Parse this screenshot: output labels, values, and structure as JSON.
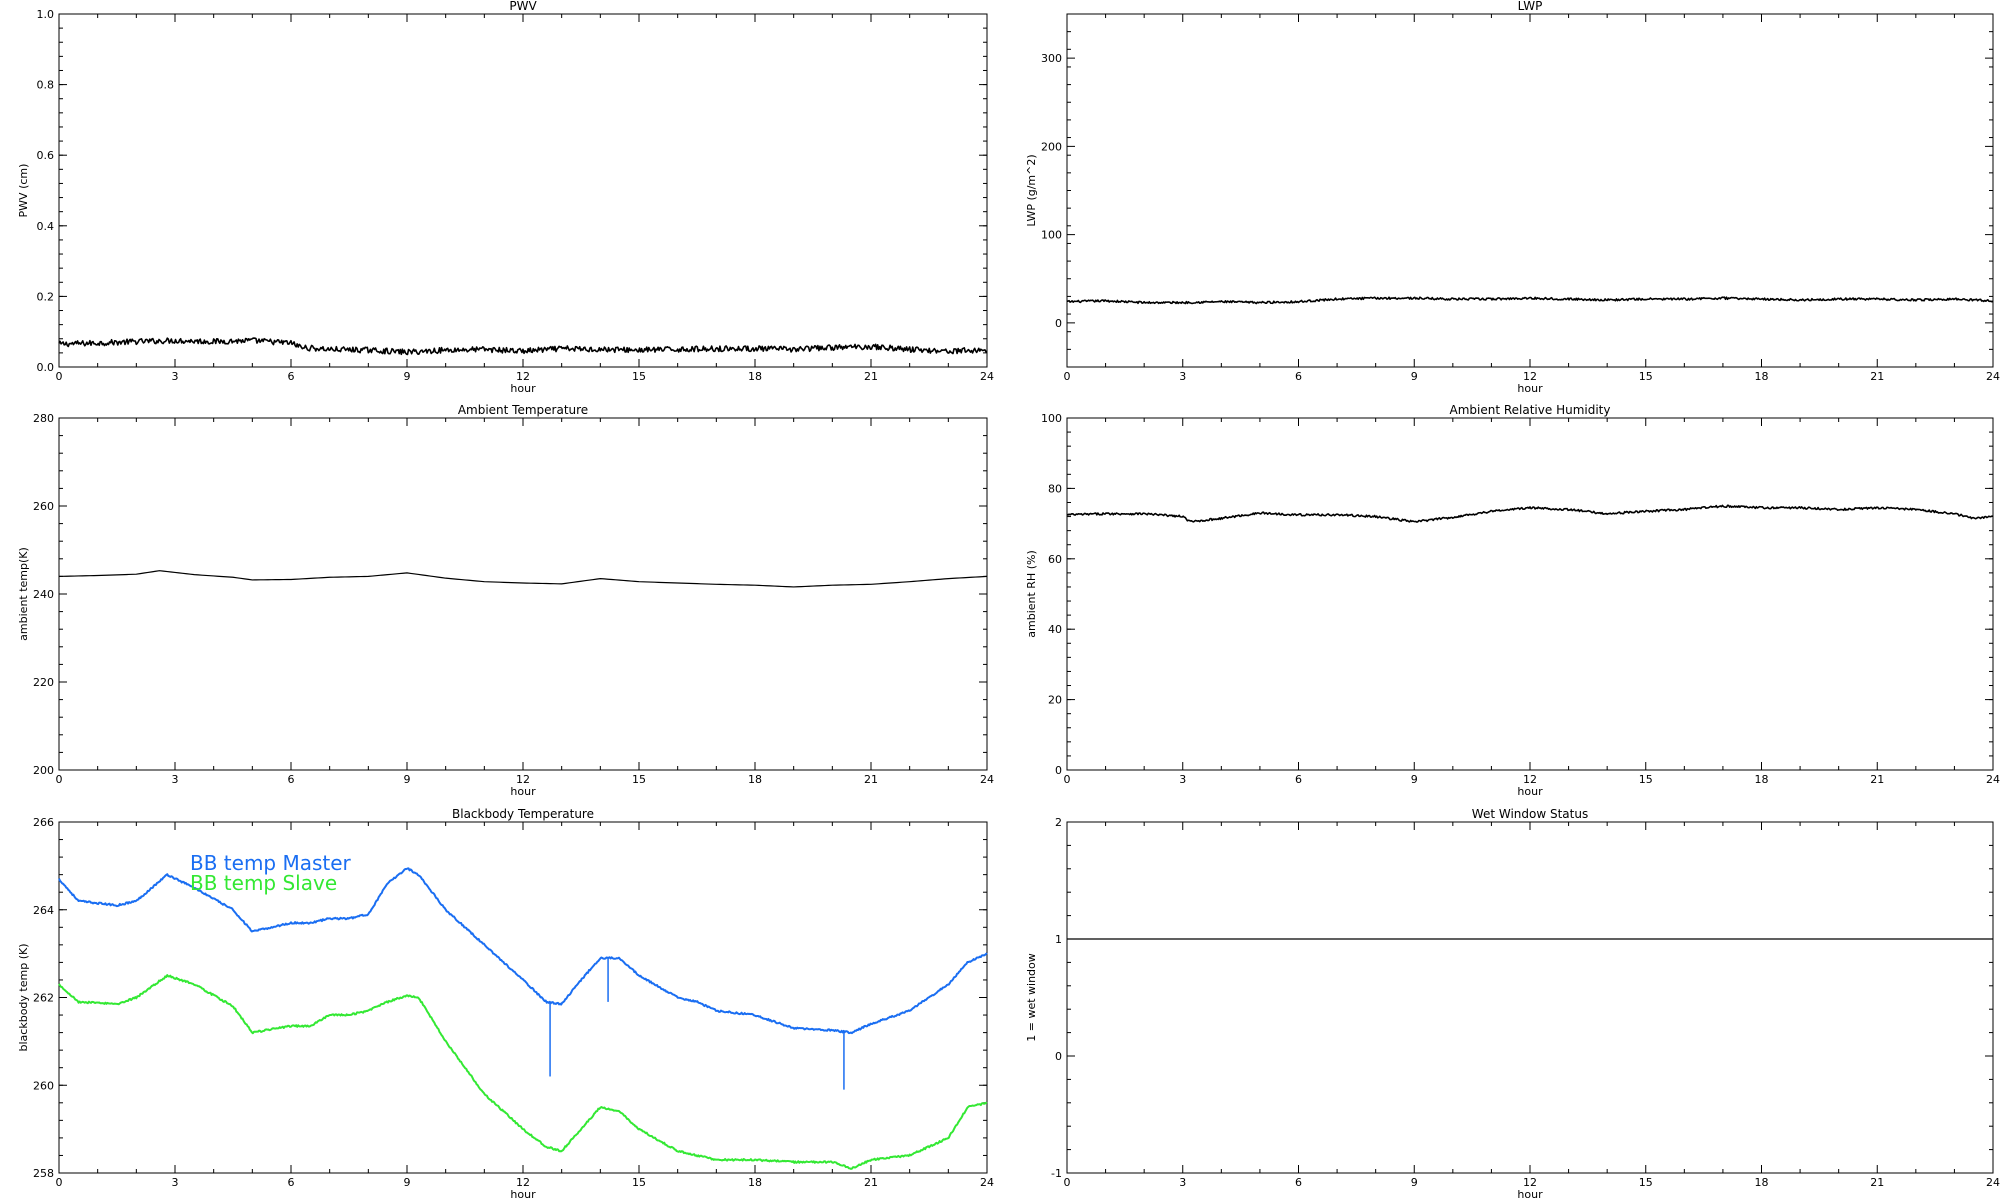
{
  "chart_data": [
    {
      "id": "pwv",
      "type": "line",
      "title": "PWV",
      "xlabel": "hour",
      "ylabel": "PWV (cm)",
      "xlim": [
        0,
        24
      ],
      "ylim": [
        0,
        1
      ],
      "xticks": [
        0,
        3,
        6,
        9,
        12,
        15,
        18,
        21,
        24
      ],
      "xtick_labels": [
        "0",
        "3",
        "6",
        "9",
        "12",
        "15",
        "18",
        "21",
        "24"
      ],
      "yticks": [
        0,
        0.2,
        0.4,
        0.6,
        0.8,
        1.0
      ],
      "ytick_labels": [
        "0.0",
        "0.2",
        "0.4",
        "0.6",
        "0.8",
        "1.0"
      ],
      "series": [
        {
          "color": "#000000",
          "noise": 0.008,
          "x": [
            0,
            1,
            2,
            3,
            4,
            5,
            6,
            6.3,
            7,
            8,
            9,
            10,
            11,
            12,
            13,
            14,
            15,
            16,
            17,
            18,
            19,
            20,
            21,
            22,
            23,
            24
          ],
          "y": [
            0.065,
            0.068,
            0.072,
            0.075,
            0.072,
            0.075,
            0.068,
            0.055,
            0.05,
            0.048,
            0.042,
            0.048,
            0.05,
            0.045,
            0.052,
            0.05,
            0.048,
            0.05,
            0.052,
            0.052,
            0.05,
            0.055,
            0.058,
            0.05,
            0.045,
            0.048
          ]
        }
      ]
    },
    {
      "id": "lwp",
      "type": "line",
      "title": "LWP",
      "xlabel": "hour",
      "ylabel": "LWP (g/m^2)",
      "xlim": [
        0,
        24
      ],
      "ylim": [
        -50,
        350
      ],
      "xticks": [
        0,
        3,
        6,
        9,
        12,
        15,
        18,
        21,
        24
      ],
      "xtick_labels": [
        "0",
        "3",
        "6",
        "9",
        "12",
        "15",
        "18",
        "21",
        "24"
      ],
      "yticks": [
        0,
        100,
        200,
        300
      ],
      "ytick_labels": [
        "0",
        "100",
        "200",
        "300"
      ],
      "series": [
        {
          "color": "#000000",
          "noise": 1.2,
          "x": [
            0,
            1,
            2,
            3,
            4,
            5,
            6,
            7,
            8,
            9,
            10,
            11,
            12,
            13,
            14,
            15,
            16,
            17,
            18,
            19,
            20,
            21,
            22,
            23,
            24
          ],
          "y": [
            24,
            25,
            23,
            23,
            24,
            23,
            24,
            27,
            28,
            28,
            27,
            27,
            28,
            27,
            26,
            27,
            27,
            28,
            27,
            26,
            27,
            27,
            26,
            27,
            25
          ]
        }
      ]
    },
    {
      "id": "ambient-temp",
      "type": "line",
      "title": "Ambient Temperature",
      "xlabel": "hour",
      "ylabel": "ambient temp(K)",
      "xlim": [
        0,
        24
      ],
      "ylim": [
        200,
        280
      ],
      "xticks": [
        0,
        3,
        6,
        9,
        12,
        15,
        18,
        21,
        24
      ],
      "xtick_labels": [
        "0",
        "3",
        "6",
        "9",
        "12",
        "15",
        "18",
        "21",
        "24"
      ],
      "yticks": [
        200,
        220,
        240,
        260,
        280
      ],
      "ytick_labels": [
        "200",
        "220",
        "240",
        "260",
        "280"
      ],
      "series": [
        {
          "color": "#000000",
          "noise": 0,
          "x": [
            0,
            1,
            2,
            2.6,
            3.5,
            4.5,
            5,
            6,
            7,
            8,
            9,
            10,
            11,
            12,
            13,
            14,
            15,
            16,
            17,
            18,
            19,
            20,
            21,
            22,
            23,
            24
          ],
          "y": [
            244,
            244.2,
            244.5,
            245.3,
            244.4,
            243.8,
            243.2,
            243.3,
            243.8,
            244.0,
            244.8,
            243.6,
            242.8,
            242.5,
            242.3,
            243.5,
            242.8,
            242.5,
            242.2,
            242.0,
            241.6,
            242.0,
            242.2,
            242.8,
            243.5,
            244.0
          ]
        }
      ]
    },
    {
      "id": "ambient-rh",
      "type": "line",
      "title": "Ambient Relative Humidity",
      "xlabel": "hour",
      "ylabel": "ambient RH (%)",
      "xlim": [
        0,
        24
      ],
      "ylim": [
        0,
        100
      ],
      "xticks": [
        0,
        3,
        6,
        9,
        12,
        15,
        18,
        21,
        24
      ],
      "xtick_labels": [
        "0",
        "3",
        "6",
        "9",
        "12",
        "15",
        "18",
        "21",
        "24"
      ],
      "yticks": [
        0,
        20,
        40,
        60,
        80,
        100
      ],
      "ytick_labels": [
        "0",
        "20",
        "40",
        "60",
        "80",
        "100"
      ],
      "series": [
        {
          "color": "#000000",
          "noise": 0.3,
          "x": [
            0,
            1,
            2,
            3,
            3.2,
            4,
            5,
            6,
            7,
            8,
            9,
            10,
            11,
            12,
            13,
            14,
            15,
            16,
            17,
            18,
            19,
            20,
            21,
            22,
            23,
            23.5,
            24
          ],
          "y": [
            72.5,
            72.8,
            72.8,
            72.0,
            70.5,
            71.5,
            73.0,
            72.5,
            72.5,
            72.0,
            70.5,
            71.8,
            73.5,
            74.5,
            74.0,
            72.8,
            73.5,
            74.0,
            75.0,
            74.5,
            74.5,
            74.0,
            74.5,
            74.0,
            72.8,
            71.5,
            72.0
          ]
        }
      ]
    },
    {
      "id": "blackbody-temp",
      "type": "line",
      "title": "Blackbody Temperature",
      "xlabel": "hour",
      "ylabel": "blackbody temp (K)",
      "xlim": [
        0,
        24
      ],
      "ylim": [
        258,
        266
      ],
      "xticks": [
        0,
        3,
        6,
        9,
        12,
        15,
        18,
        21,
        24
      ],
      "xtick_labels": [
        "0",
        "3",
        "6",
        "9",
        "12",
        "15",
        "18",
        "21",
        "24"
      ],
      "yticks": [
        258,
        260,
        262,
        264,
        266
      ],
      "ytick_labels": [
        "258",
        "260",
        "262",
        "264",
        "266"
      ],
      "legend": [
        "BB temp Master",
        "BB temp Slave"
      ],
      "series": [
        {
          "name": "BB temp Master",
          "color": "#1a6ef2",
          "noise": 0.02,
          "x": [
            0,
            0.5,
            1.5,
            2,
            2.8,
            3.5,
            4.5,
            5,
            6,
            6.5,
            7,
            7.5,
            8,
            8.5,
            9,
            9.3,
            10,
            11,
            12,
            12.6,
            13,
            13.5,
            14,
            14.5,
            15,
            16,
            16.5,
            17,
            18,
            19,
            20,
            20.5,
            21,
            22,
            23,
            23.5,
            24
          ],
          "y": [
            264.7,
            264.2,
            264.1,
            264.2,
            264.8,
            264.5,
            264.0,
            263.5,
            263.7,
            263.7,
            263.8,
            263.8,
            263.9,
            264.6,
            264.95,
            264.8,
            264.0,
            263.2,
            262.4,
            261.9,
            261.85,
            262.4,
            262.9,
            262.9,
            262.5,
            262.0,
            261.9,
            261.7,
            261.6,
            261.3,
            261.25,
            261.2,
            261.4,
            261.7,
            262.3,
            262.8,
            263.0
          ],
          "spikes": [
            {
              "x": 12.7,
              "from": 261.9,
              "to": 260.2
            },
            {
              "x": 14.2,
              "from": 262.9,
              "to": 261.9
            },
            {
              "x": 20.3,
              "from": 261.25,
              "to": 259.9
            }
          ]
        },
        {
          "name": "BB temp Slave",
          "color": "#33e833",
          "noise": 0.02,
          "x": [
            0,
            0.5,
            1.5,
            2,
            2.8,
            3.5,
            4.5,
            5,
            6,
            6.5,
            7,
            7.5,
            8,
            8.5,
            9,
            9.3,
            10,
            11,
            12,
            12.6,
            13,
            13.5,
            14,
            14.5,
            15,
            16,
            16.5,
            17,
            18,
            19,
            20,
            20.5,
            21,
            22,
            23,
            23.5,
            24
          ],
          "y": [
            262.3,
            261.9,
            261.85,
            262.0,
            262.5,
            262.3,
            261.8,
            261.2,
            261.35,
            261.35,
            261.6,
            261.6,
            261.7,
            261.9,
            262.05,
            262.0,
            261.0,
            259.8,
            259.0,
            258.6,
            258.5,
            259.0,
            259.5,
            259.4,
            259.0,
            258.5,
            258.4,
            258.3,
            258.3,
            258.25,
            258.25,
            258.1,
            258.3,
            258.4,
            258.8,
            259.5,
            259.6
          ]
        }
      ]
    },
    {
      "id": "wet-window",
      "type": "line",
      "title": "Wet Window Status",
      "xlabel": "hour",
      "ylabel": "1 = wet window",
      "xlim": [
        0,
        24
      ],
      "ylim": [
        -1,
        2
      ],
      "xticks": [
        0,
        3,
        6,
        9,
        12,
        15,
        18,
        21,
        24
      ],
      "xtick_labels": [
        "0",
        "3",
        "6",
        "9",
        "12",
        "15",
        "18",
        "21",
        "24"
      ],
      "yticks": [
        -1,
        0,
        1,
        2
      ],
      "ytick_labels": [
        "-1",
        "0",
        "1",
        "2"
      ],
      "series": [
        {
          "color": "#000000",
          "noise": 0,
          "x": [
            0,
            24
          ],
          "y": [
            1,
            1
          ]
        }
      ]
    }
  ]
}
